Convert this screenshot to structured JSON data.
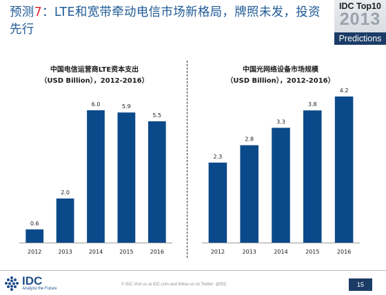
{
  "slide": {
    "title_prefix": "预测",
    "title_number": "7",
    "title_rest": "：LTE和宽带牵动电信市场新格局，牌照未发，投资先行",
    "highlight_color": "#d8262e",
    "title_color": "#1f5a96"
  },
  "badge": {
    "top_text": "IDC Top10",
    "year": "2013",
    "bottom_text": "Predictions"
  },
  "footer": {
    "logo_text": "IDC",
    "logo_tagline": "Analyze the Future",
    "notice": "© IDC   Visit us at IDC.com and follow us on Twitter: @IDC",
    "page_number": "15"
  },
  "chart_data": [
    {
      "type": "bar",
      "title": "中国电信运营商LTE资本支出",
      "subtitle": "（USD Billion），2012-2016）",
      "categories": [
        "2012",
        "2013",
        "2014",
        "2015",
        "2016"
      ],
      "values": [
        0.6,
        2.0,
        6.0,
        5.9,
        5.5
      ],
      "value_labels": [
        "0.6",
        "2.0",
        "6.0",
        "5.9",
        "5.5"
      ],
      "ylim": [
        0,
        6.6
      ],
      "grid": false,
      "bar_color": "#0b4a8a"
    },
    {
      "type": "bar",
      "title": "中国光网络设备市场规模",
      "subtitle": "（USD Billion），2012-2016）",
      "categories": [
        "2012",
        "2013",
        "2014",
        "2015",
        "2016"
      ],
      "values": [
        2.3,
        2.8,
        3.3,
        3.8,
        4.2
      ],
      "value_labels": [
        "2.3",
        "2.8",
        "3.3",
        "3.8",
        "4.2"
      ],
      "ylim": [
        0,
        4.6
      ],
      "grid": false,
      "bar_color": "#0b4a8a"
    }
  ]
}
